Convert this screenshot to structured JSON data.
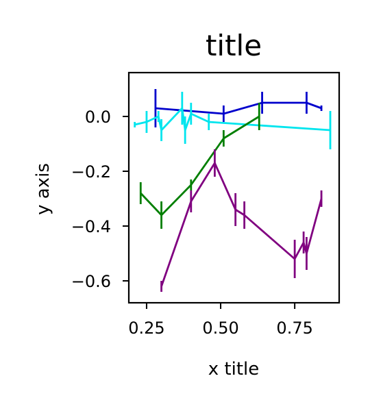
{
  "chart_data": {
    "type": "line",
    "title": "title",
    "xlabel": "x title",
    "ylabel": "y axis",
    "xlim": [
      0.19,
      0.9
    ],
    "ylim": [
      -0.68,
      0.16
    ],
    "xticks": [
      0.25,
      0.5,
      0.75
    ],
    "xtick_labels": [
      "0.25",
      "0.50",
      "0.75"
    ],
    "yticks": [
      0.0,
      -0.2,
      -0.4,
      -0.6
    ],
    "ytick_labels": [
      "0.0",
      "−0.2",
      "−0.4",
      "−0.6"
    ],
    "grid": false,
    "legend": false,
    "series": [
      {
        "color": "#0000cc",
        "x": [
          0.28,
          0.51,
          0.64,
          0.79,
          0.84
        ],
        "y": [
          0.03,
          0.01,
          0.05,
          0.05,
          0.03
        ],
        "err": [
          0.07,
          0.03,
          0.04,
          0.04,
          0.01
        ]
      },
      {
        "color": "#00e5ee",
        "x": [
          0.21,
          0.25,
          0.29,
          0.3,
          0.37,
          0.38,
          0.4,
          0.46,
          0.87
        ],
        "y": [
          -0.03,
          -0.02,
          0.0,
          -0.05,
          0.03,
          -0.05,
          0.01,
          -0.02,
          -0.05
        ],
        "err": [
          0.01,
          0.04,
          0.02,
          0.04,
          0.06,
          0.05,
          0.04,
          0.03,
          0.07
        ]
      },
      {
        "color": "#007f00",
        "x": [
          0.23,
          0.3,
          0.4,
          0.51,
          0.63
        ],
        "y": [
          -0.28,
          -0.36,
          -0.25,
          -0.08,
          0.0
        ],
        "err": [
          0.04,
          0.05,
          0.02,
          0.03,
          0.05
        ]
      },
      {
        "color": "#800080",
        "x": [
          0.3,
          0.4,
          0.48,
          0.55,
          0.58,
          0.75,
          0.78,
          0.79,
          0.84
        ],
        "y": [
          -0.62,
          -0.31,
          -0.17,
          -0.34,
          -0.36,
          -0.52,
          -0.46,
          -0.5,
          -0.3
        ],
        "err": [
          0.02,
          0.04,
          0.05,
          0.06,
          0.05,
          0.07,
          0.04,
          0.06,
          0.03
        ]
      }
    ]
  }
}
